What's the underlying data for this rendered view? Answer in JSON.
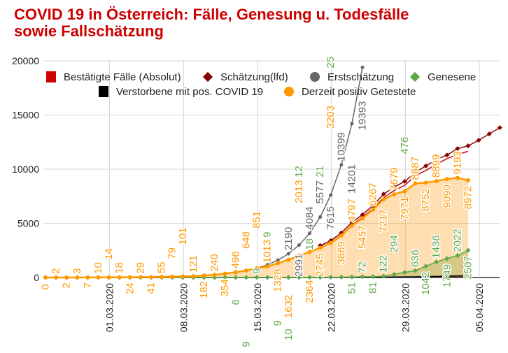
{
  "chart_data": {
    "type": "line",
    "title_line1": "COVID 19 in Österreich: Fälle, Genesung u. Todesfälle",
    "title_line2": "sowie Fallschätzung",
    "xlabel": "",
    "ylabel": "",
    "ylim": [
      0,
      20000
    ],
    "yticks": [
      "0",
      "5000",
      "10000",
      "15000",
      "20000"
    ],
    "grid": true,
    "legend_placement": "top-center",
    "x_start": "24.02.2020",
    "x_ticks": [
      {
        "label": "01.03.2020",
        "index": 6
      },
      {
        "label": "08.03.2020",
        "index": 13
      },
      {
        "label": "15.03.2020",
        "index": 20
      },
      {
        "label": "22.03.2020",
        "index": 27
      },
      {
        "label": "29.03.2020",
        "index": 34
      },
      {
        "label": "05.04.2020",
        "index": 41
      }
    ],
    "series": [
      {
        "name": "Bestätigte Fälle (Absolut)",
        "color": "#cc0000",
        "marker": "square",
        "start": 0,
        "values": [
          0,
          2,
          2,
          3,
          7,
          10,
          14,
          18,
          24,
          29,
          41,
          55,
          79,
          101,
          121,
          182,
          240,
          354,
          502,
          657,
          860,
          1023,
          1338,
          1645,
          2028,
          2386,
          2772,
          3236,
          3919,
          4869,
          5554,
          6376,
          7369,
          8022,
          8505,
          9391,
          9880,
          10443,
          10967,
          11361,
          11647
        ]
      },
      {
        "name": "Schätzung(lfd)",
        "color": "#8b0000",
        "marker": "diamond",
        "start": 26,
        "values": [
          2950,
          3400,
          4120,
          5100,
          5800,
          6650,
          7700,
          8350,
          8870,
          9700,
          10300,
          10900,
          11300,
          11900,
          12150,
          12670,
          13250,
          13830
        ]
      },
      {
        "name": "Erstschätzung",
        "color": "#666666",
        "marker": "circle",
        "start": 18,
        "values": [
          461,
          630,
          860,
          1175,
          1604,
          2190,
          2991,
          4084,
          5577,
          7615,
          10399,
          14201,
          19393
        ],
        "labels_from": 23
      },
      {
        "name": "Genesene",
        "color": "#5fa84a",
        "marker": "diamond",
        "start": 0,
        "values": [
          0,
          0,
          0,
          0,
          0,
          0,
          0,
          0,
          0,
          0,
          0,
          0,
          0,
          0,
          0,
          0,
          0,
          0,
          6,
          9,
          9,
          9,
          9,
          10,
          12,
          18,
          21,
          25,
          34,
          51,
          72,
          81,
          122,
          294,
          476,
          636,
          1042,
          1436,
          1749,
          2022,
          2507
        ],
        "labels_from": 18
      },
      {
        "name": "Verstorbene mit pos. COVID 19",
        "color": "#000000",
        "marker": "square",
        "start": 0,
        "values": [
          0,
          0,
          0,
          0,
          0,
          0,
          0,
          0,
          0,
          0,
          0,
          0,
          0,
          0,
          0,
          0,
          0,
          0,
          0,
          0,
          0,
          1,
          1,
          3,
          3,
          4,
          6,
          8,
          16,
          21,
          25,
          28,
          30,
          49,
          58,
          68,
          86,
          108,
          128,
          146,
          168
        ]
      },
      {
        "name": "Derzeit positiv Getestete",
        "color": "#ff9900",
        "marker": "circle",
        "start": 0,
        "values": [
          0,
          2,
          2,
          3,
          7,
          10,
          14,
          18,
          24,
          29,
          41,
          55,
          79,
          101,
          121,
          182,
          240,
          354,
          496,
          648,
          851,
          1013,
          1328,
          1632,
          2013,
          2364,
          2745,
          3203,
          3869,
          4797,
          5457,
          6267,
          7217,
          7679,
          7971,
          8687,
          8752,
          8899,
          9090,
          9193,
          8972
        ],
        "labels_from": 0
      }
    ]
  }
}
